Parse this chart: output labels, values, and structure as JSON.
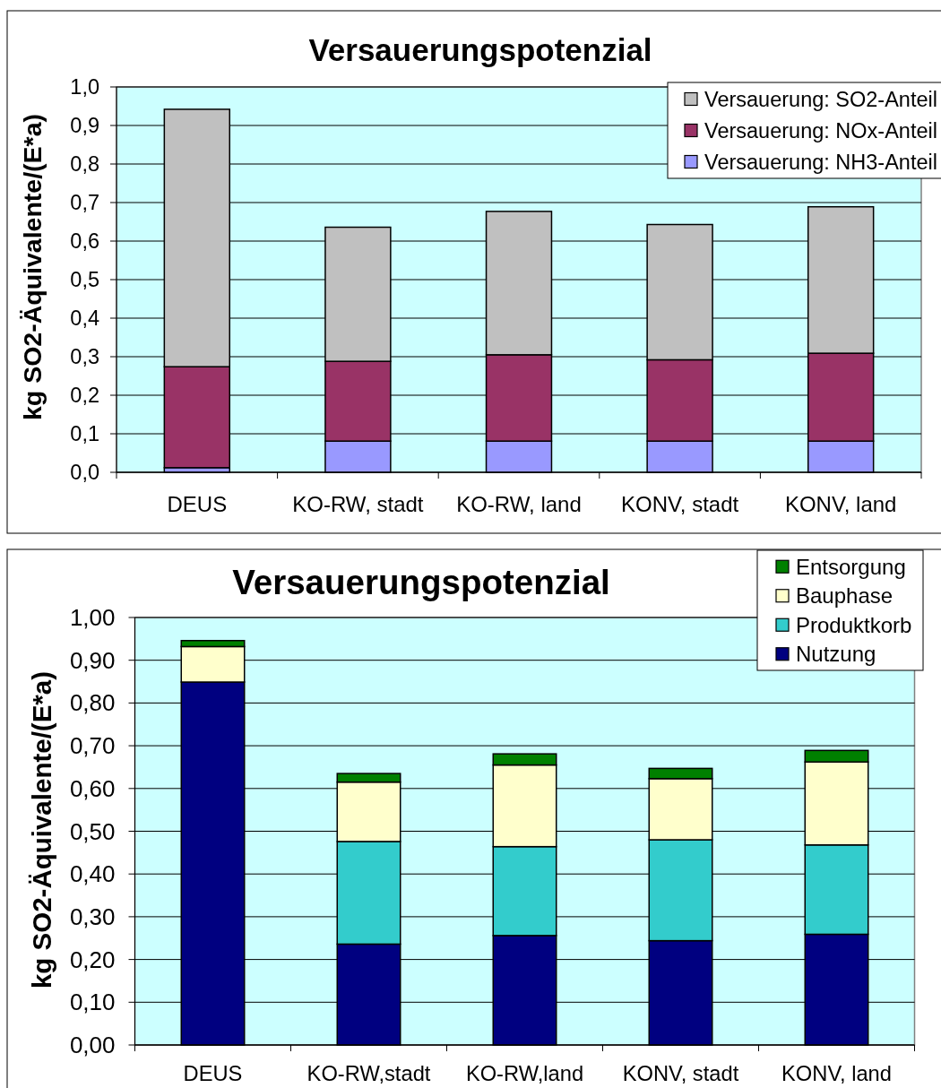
{
  "chart_data": [
    {
      "type": "bar",
      "title": "Versauerungspotenzial",
      "ylabel": "kg SO2-Äquivalente/(E*a)",
      "categories": [
        "DEUS",
        "KO-RW, stadt",
        "KO-RW, land",
        "KONV, stadt",
        "KONV, land"
      ],
      "stacked": true,
      "series": [
        {
          "name": "Versauerung: NH3-Anteil",
          "color": "#9999ff",
          "values": [
            0.012,
            0.081,
            0.081,
            0.081,
            0.081
          ]
        },
        {
          "name": "Versauerung: NOx-Anteil",
          "color": "#993366",
          "values": [
            0.262,
            0.207,
            0.224,
            0.211,
            0.228
          ]
        },
        {
          "name": "Versauerung: SO2-Anteil",
          "color": "#c0c0c0",
          "values": [
            0.668,
            0.348,
            0.372,
            0.351,
            0.38
          ]
        }
      ],
      "ylim": [
        0,
        1
      ],
      "yticks": [
        {
          "value": 0,
          "label": "0,0"
        },
        {
          "value": 0.1,
          "label": "0,1"
        },
        {
          "value": 0.2,
          "label": "0,2"
        },
        {
          "value": 0.3,
          "label": "0,3"
        },
        {
          "value": 0.4,
          "label": "0,4"
        },
        {
          "value": 0.5,
          "label": "0,5"
        },
        {
          "value": 0.6,
          "label": "0,6"
        },
        {
          "value": 0.7,
          "label": "0,7"
        },
        {
          "value": 0.8,
          "label": "0,8"
        },
        {
          "value": 0.9,
          "label": "0,9"
        },
        {
          "value": 1,
          "label": "1,0"
        }
      ],
      "grid": "y",
      "legend": "top right"
    },
    {
      "type": "bar",
      "title": "Versauerungspotenzial",
      "ylabel": "kg SO2-Äquivalente/(E*a)",
      "categories": [
        "DEUS",
        "KO-RW,stadt",
        "KO-RW,land",
        "KONV, stadt",
        "KONV, land"
      ],
      "stacked": true,
      "series": [
        {
          "name": "Nutzung",
          "color": "#000080",
          "values": [
            0.849,
            0.236,
            0.256,
            0.244,
            0.259
          ]
        },
        {
          "name": "Produktkorb",
          "color": "#33cccc",
          "values": [
            null,
            0.24,
            0.208,
            0.236,
            0.209
          ]
        },
        {
          "name": "Bauphase",
          "color": "#ffffcc",
          "values": [
            0.083,
            0.139,
            0.191,
            0.143,
            0.194
          ]
        },
        {
          "name": "Entsorgung",
          "color": "#008000",
          "values": [
            0.014,
            0.02,
            0.026,
            0.024,
            0.027
          ]
        }
      ],
      "ylim": [
        0,
        1
      ],
      "yticks": [
        {
          "value": 0,
          "label": "0,00"
        },
        {
          "value": 0.1,
          "label": "0,10"
        },
        {
          "value": 0.2,
          "label": "0,20"
        },
        {
          "value": 0.3,
          "label": "0,30"
        },
        {
          "value": 0.4,
          "label": "0,40"
        },
        {
          "value": 0.5,
          "label": "0,50"
        },
        {
          "value": 0.6,
          "label": "0,60"
        },
        {
          "value": 0.7,
          "label": "0,70"
        },
        {
          "value": 0.8,
          "label": "0,80"
        },
        {
          "value": 0.9,
          "label": "0,90"
        },
        {
          "value": 1,
          "label": "1,00"
        }
      ],
      "grid": "y",
      "legend": "top right"
    }
  ]
}
